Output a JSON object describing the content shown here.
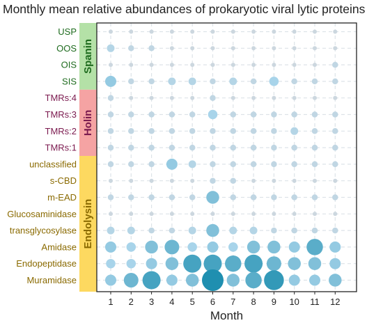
{
  "chart_data": {
    "type": "bubble",
    "title": "Monthly mean relative abundances of prokaryotic viral lytic proteins",
    "xlabel": "Month",
    "months": [
      "1",
      "2",
      "3",
      "4",
      "5",
      "6",
      "7",
      "8",
      "9",
      "10",
      "11",
      "12"
    ],
    "grid": true,
    "colors": {
      "bubble_light": "#ccd7df",
      "bubble_mid": "#a8d4ea",
      "bubble_dark": "#1f8fb0",
      "spanin": "#b4e1a7",
      "holin": "#f5a3a3",
      "endolysin": "#fdd960",
      "spanin_text": "#1e6b1e",
      "holin_text": "#7b1a4f",
      "endolysin_text": "#8a6a00"
    },
    "groups": [
      {
        "name": "Spanin",
        "color": "#b4e1a7",
        "text_color": "#1e6b1e",
        "rows": [
          {
            "label": "USP",
            "values": [
              1,
              1,
              1,
              1,
              1,
              1,
              1,
              1,
              1,
              1,
              1,
              1
            ]
          },
          {
            "label": "OOS",
            "values": [
              3,
              2,
              2,
              1,
              1,
              1,
              1,
              1,
              1,
              1,
              1,
              1
            ]
          },
          {
            "label": "OIS",
            "values": [
              1,
              1,
              1,
              1,
              1,
              1,
              1,
              1,
              1,
              1,
              1,
              2
            ]
          },
          {
            "label": "SIS",
            "values": [
              5,
              2,
              2,
              3,
              3,
              2,
              3,
              2,
              4,
              2,
              2,
              2
            ]
          }
        ]
      },
      {
        "name": "Holin",
        "color": "#f5a3a3",
        "text_color": "#7b1a4f",
        "rows": [
          {
            "label": "TMRs:4",
            "values": [
              2,
              1,
              1,
              1,
              1,
              2,
              1,
              1,
              1,
              1,
              1,
              1
            ]
          },
          {
            "label": "TMRs:3",
            "values": [
              2,
              2,
              2,
              2,
              2,
              4,
              2,
              2,
              2,
              2,
              2,
              2
            ]
          },
          {
            "label": "TMRs:2",
            "values": [
              2,
              2,
              2,
              2,
              2,
              2,
              2,
              2,
              2,
              3,
              2,
              2
            ]
          },
          {
            "label": "TMRs:1",
            "values": [
              2,
              2,
              2,
              2,
              2,
              2,
              2,
              2,
              2,
              2,
              2,
              2
            ]
          }
        ]
      },
      {
        "name": "Endolysin",
        "color": "#fdd960",
        "text_color": "#8a6a00",
        "rows": [
          {
            "label": "unclassified",
            "values": [
              2,
              2,
              2,
              5,
              3,
              2,
              2,
              2,
              2,
              2,
              2,
              2
            ]
          },
          {
            "label": "s-CBD",
            "values": [
              1,
              1,
              1,
              1,
              1,
              2,
              2,
              1,
              1,
              1,
              1,
              1
            ]
          },
          {
            "label": "m-EAD",
            "values": [
              2,
              2,
              2,
              2,
              2,
              6,
              2,
              2,
              2,
              2,
              2,
              2
            ]
          },
          {
            "label": "Glucosaminidase",
            "values": [
              1,
              1,
              1,
              1,
              1,
              1,
              1,
              1,
              1,
              1,
              1,
              1
            ]
          },
          {
            "label": "transglycosylase",
            "values": [
              3,
              3,
              2,
              2,
              3,
              6,
              3,
              3,
              2,
              2,
              2,
              2
            ]
          },
          {
            "label": "Amidase",
            "values": [
              5,
              4,
              6,
              7,
              4,
              5,
              4,
              6,
              6,
              5,
              8,
              5
            ]
          },
          {
            "label": "Endopeptidase",
            "values": [
              4,
              4,
              5,
              6,
              9,
              9,
              8,
              9,
              7,
              6,
              6,
              5
            ]
          },
          {
            "label": "Muramidase",
            "values": [
              5,
              7,
              9,
              5,
              6,
              11,
              6,
              8,
              10,
              5,
              5,
              6
            ]
          }
        ]
      }
    ]
  }
}
